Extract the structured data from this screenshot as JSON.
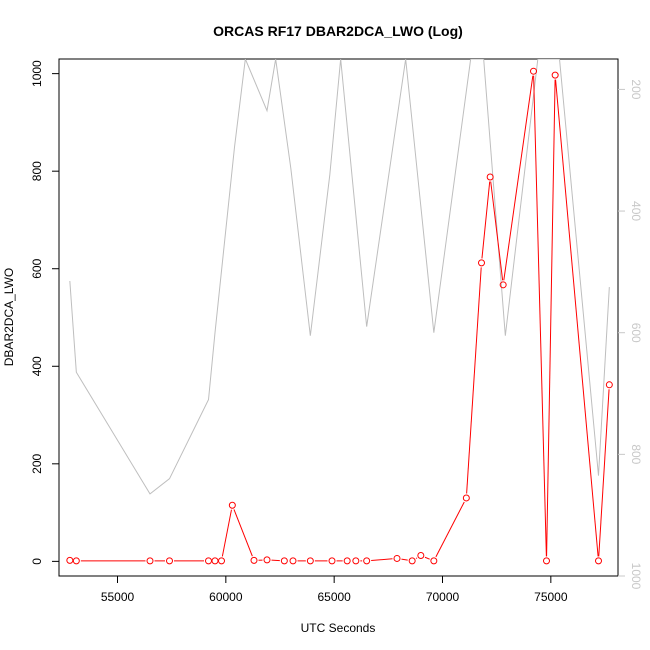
{
  "chart_data": {
    "type": "line",
    "title": "ORCAS RF17 DBAR2DCA_LWO (Log)",
    "xlabel": "UTC Seconds",
    "ylabel": "DBAR2DCA_LWO",
    "xlim": [
      52300,
      78100
    ],
    "ylim": [
      -30,
      1030
    ],
    "y2lim": [
      1000,
      150
    ],
    "x_ticks": [
      55000,
      60000,
      65000,
      70000,
      75000
    ],
    "y_ticks": [
      0,
      200,
      400,
      600,
      800,
      1000
    ],
    "y2_ticks": [
      200,
      400,
      600,
      800,
      1000
    ],
    "grid": false,
    "colors": {
      "primary": "#ff0000",
      "secondary": "#bebebe"
    },
    "series": [
      {
        "axis": "left",
        "color": "#ff0000",
        "marker": "open-circle",
        "x": [
          52800,
          53100,
          56500,
          57400,
          59200,
          59500,
          59800,
          60300,
          61300,
          61900,
          62700,
          63100,
          63900,
          64900,
          65600,
          66000,
          66500,
          67900,
          68600,
          69000,
          69600,
          71100,
          71800,
          72200,
          72800,
          74200,
          74800,
          75200,
          77200,
          77700
        ],
        "y": [
          2,
          1,
          1,
          1,
          1,
          1,
          1,
          115,
          2,
          3,
          1,
          1,
          1,
          1,
          1,
          1,
          1,
          6,
          1,
          12,
          1,
          130,
          612,
          788,
          567,
          1005,
          1,
          997,
          1,
          362
        ]
      },
      {
        "axis": "right",
        "color": "#bebebe",
        "x": [
          52800,
          53100,
          56500,
          57400,
          59200,
          59500,
          60400,
          60900,
          61900,
          62300,
          63000,
          63900,
          64800,
          65300,
          66500,
          68300,
          69600,
          71300,
          71900,
          72900,
          74400,
          75400,
          77200,
          77700
        ],
        "y": [
          515,
          665,
          865,
          840,
          710,
          600,
          295,
          150,
          235,
          150,
          330,
          605,
          340,
          150,
          590,
          150,
          600,
          150,
          150,
          605,
          150,
          150,
          835,
          525
        ]
      }
    ]
  }
}
